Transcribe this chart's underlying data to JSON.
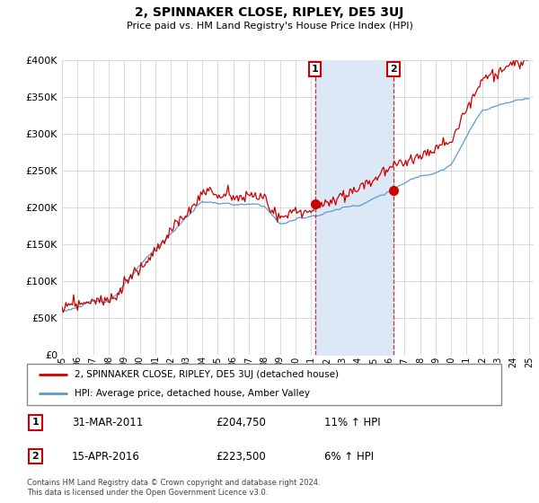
{
  "title": "2, SPINNAKER CLOSE, RIPLEY, DE5 3UJ",
  "subtitle": "Price paid vs. HM Land Registry's House Price Index (HPI)",
  "red_line_label": "2, SPINNAKER CLOSE, RIPLEY, DE5 3UJ (detached house)",
  "blue_line_label": "HPI: Average price, detached house, Amber Valley",
  "annotation1_date": "31-MAR-2011",
  "annotation1_price": "£204,750",
  "annotation1_hpi": "11% ↑ HPI",
  "annotation2_date": "15-APR-2016",
  "annotation2_price": "£223,500",
  "annotation2_hpi": "6% ↑ HPI",
  "footer": "Contains HM Land Registry data © Crown copyright and database right 2024.\nThis data is licensed under the Open Government Licence v3.0.",
  "ylim": [
    0,
    400000
  ],
  "red_color": "#cc0000",
  "blue_color": "#5b9bd5",
  "blue_fill_color": "#dce8f5",
  "grid_color": "#cccccc",
  "sale1_year": 2011.25,
  "sale1_price": 204750,
  "sale2_year": 2016.29,
  "sale2_price": 223500,
  "start_year": 1995,
  "end_year": 2025
}
